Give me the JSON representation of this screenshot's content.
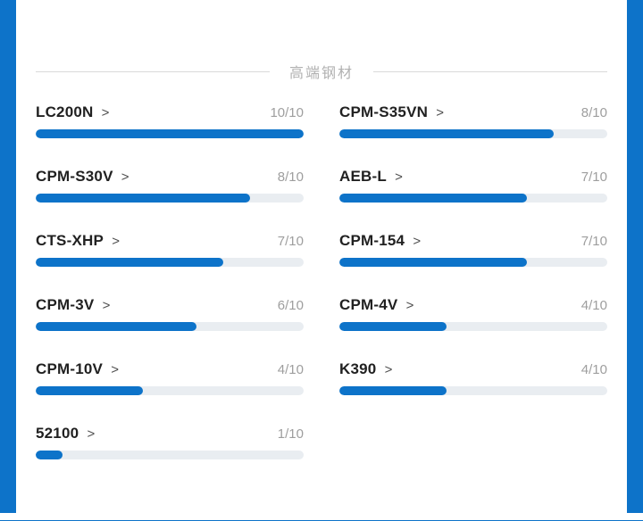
{
  "page": {
    "accent_color": "#0d73c9",
    "track_color": "#e9edf1"
  },
  "section": {
    "title": "高端钢材"
  },
  "ratings": {
    "max": 10,
    "chevron_glyph": ">",
    "items": [
      {
        "name": "LC200N",
        "score": 10,
        "score_label": "10/10"
      },
      {
        "name": "CPM-S35VN",
        "score": 8,
        "score_label": "8/10"
      },
      {
        "name": "CPM-S30V",
        "score": 8,
        "score_label": "8/10"
      },
      {
        "name": "AEB-L",
        "score": 7,
        "score_label": "7/10"
      },
      {
        "name": "CTS-XHP",
        "score": 7,
        "score_label": "7/10"
      },
      {
        "name": "CPM-154",
        "score": 7,
        "score_label": "7/10"
      },
      {
        "name": "CPM-3V",
        "score": 6,
        "score_label": "6/10"
      },
      {
        "name": "CPM-4V",
        "score": 4,
        "score_label": "4/10"
      },
      {
        "name": "CPM-10V",
        "score": 4,
        "score_label": "4/10"
      },
      {
        "name": "K390",
        "score": 4,
        "score_label": "4/10"
      },
      {
        "name": "52100",
        "score": 1,
        "score_label": "1/10"
      }
    ]
  }
}
